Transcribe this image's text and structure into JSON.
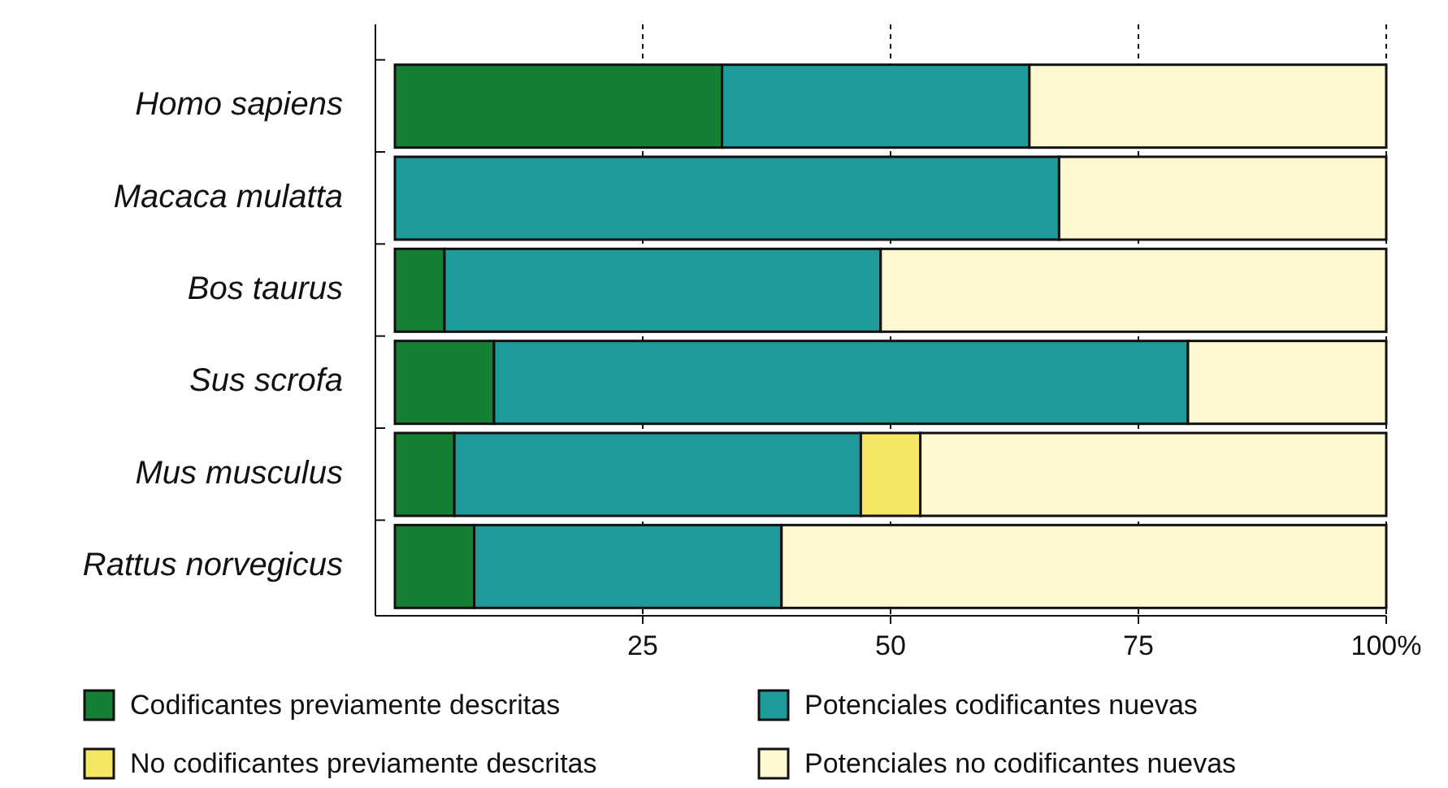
{
  "chart_data": {
    "type": "bar",
    "orientation": "horizontal",
    "stacked": true,
    "categories": [
      "Homo sapiens",
      "Macaca mulatta",
      "Bos taurus",
      "Sus scrofa",
      "Mus musculus",
      "Rattus norvegicus"
    ],
    "series": [
      {
        "name": "Codificantes previamente descritas",
        "color": "#157f33",
        "values": [
          33,
          0,
          5,
          10,
          6,
          8
        ]
      },
      {
        "name": "Potenciales codificantes nuevas",
        "color": "#1f9b9b",
        "values": [
          31,
          67,
          44,
          70,
          41,
          31
        ]
      },
      {
        "name": "No codificantes previamente descritas",
        "color": "#f5e663",
        "values": [
          0,
          0,
          0,
          0,
          6,
          0
        ]
      },
      {
        "name": "Potenciales no codificantes nuevas",
        "color": "#fdf8d0",
        "values": [
          36,
          33,
          51,
          20,
          47,
          61
        ]
      }
    ],
    "xlim": [
      0,
      100
    ],
    "xticks": [
      25,
      50,
      75,
      {
        "value": 100,
        "label": "100%"
      }
    ],
    "grid": "x",
    "legend": "bottom"
  }
}
